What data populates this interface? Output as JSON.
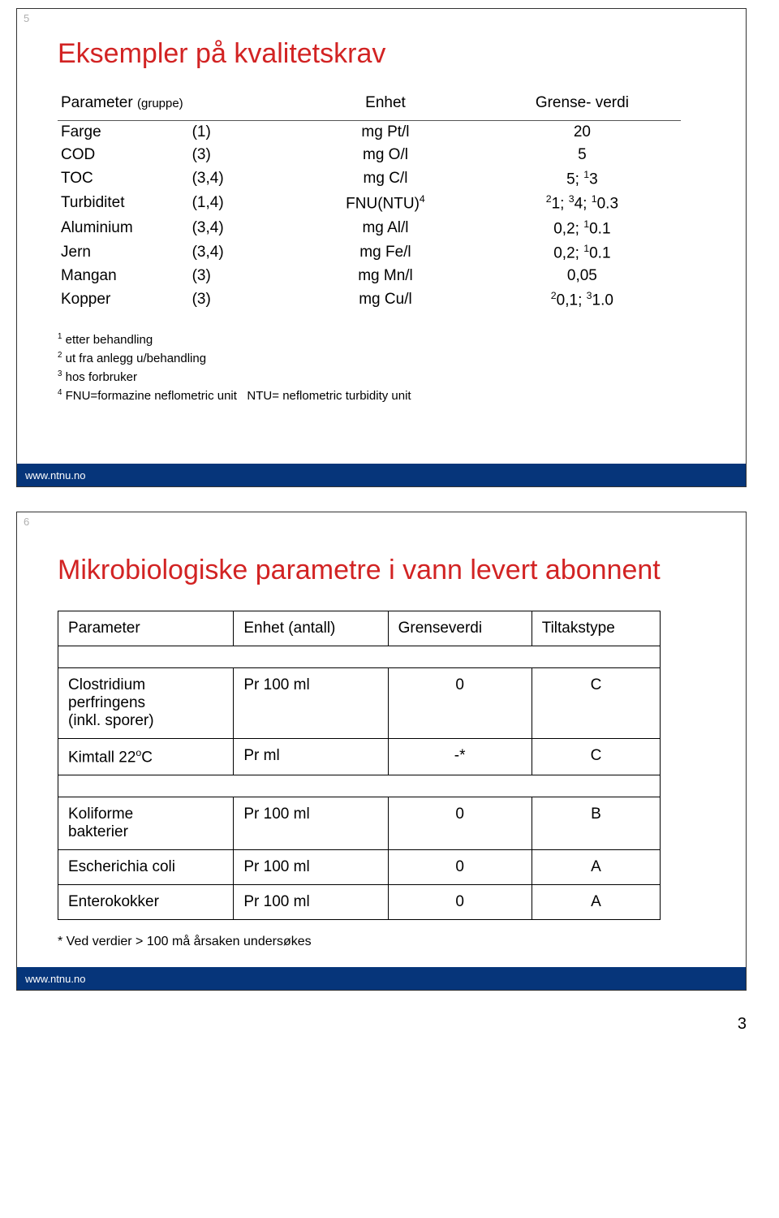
{
  "footer_text": "www.ntnu.no",
  "page_number": "3",
  "slide1": {
    "number": "5",
    "title": "Eksempler på kvalitetskrav",
    "headers": {
      "param": "Parameter",
      "group": "(gruppe)",
      "unit": "Enhet",
      "limit": "Grense- verdi"
    },
    "rows": [
      {
        "name": "Farge",
        "grp": "(1)",
        "unit": "mg Pt/l",
        "limit": "20"
      },
      {
        "name": "COD",
        "grp": "(3)",
        "unit": "mg O/l",
        "limit": "5"
      },
      {
        "name": "TOC",
        "grp": "(3,4)",
        "unit": "mg C/l",
        "limit_html": "5; <span class='sup'>1</span>3"
      },
      {
        "name": "Turbiditet",
        "grp": "(1,4)",
        "unit_html": "FNU(NTU)<span class='sup'>4</span>",
        "limit_html": "<span class='sup'>2</span>1; <span class='sup'>3</span>4; <span class='sup'>1</span>0.3"
      },
      {
        "name": "Aluminium",
        "grp": "(3,4)",
        "unit": "mg Al/l",
        "limit_html": "0,2; <span class='sup'>1</span>0.1"
      },
      {
        "name": "Jern",
        "grp": "(3,4)",
        "unit": "mg Fe/l",
        "limit_html": "0,2; <span class='sup'>1</span>0.1"
      },
      {
        "name": "Mangan",
        "grp": "(3)",
        "unit": "mg Mn/l",
        "limit": "0,05"
      },
      {
        "name": "Kopper",
        "grp": "(3)",
        "unit": "mg Cu/l",
        "limit_html": "<span class='sup'>2</span>0,1; <span class='sup'>3</span>1.0"
      }
    ],
    "notes": {
      "n1_html": "<span class='sup'>1</span> etter behandling",
      "n2_html": "<span class='sup'>2</span> ut fra anlegg u/behandling",
      "n3_html": "<span class='sup'>3</span> hos forbruker",
      "n4_html": "<span class='sup'>4</span> FNU=formazine neflometric unit&nbsp;&nbsp;&nbsp;NTU= neflometric turbidity unit"
    }
  },
  "slide2": {
    "number": "6",
    "title": "Mikrobiologiske parametre i vann levert abonnent",
    "headers": {
      "param": "Parameter",
      "unit": "Enhet (antall)",
      "limit": "Grenseverdi",
      "type": "Tiltakstype"
    },
    "rows": [
      {
        "param_html": "Clostridium<br>perfringens<br>(inkl. sporer)",
        "unit": "Pr 100 ml",
        "limit": "0",
        "type": "C"
      },
      {
        "param_html": "Kimtall 22<span class='sup'>o</span>C",
        "unit": "Pr ml",
        "limit": "-*",
        "type": "C"
      },
      {
        "param_html": "Koliforme<br>bakterier",
        "unit": "Pr 100 ml",
        "limit": "0",
        "type": "B"
      },
      {
        "param": "Escherichia coli",
        "unit": "Pr 100 ml",
        "limit": "0",
        "type": "A"
      },
      {
        "param": "Enterokokker",
        "unit": "Pr 100 ml",
        "limit": "0",
        "type": "A"
      }
    ],
    "footnote": "* Ved verdier > 100 må årsaken undersøkes"
  }
}
